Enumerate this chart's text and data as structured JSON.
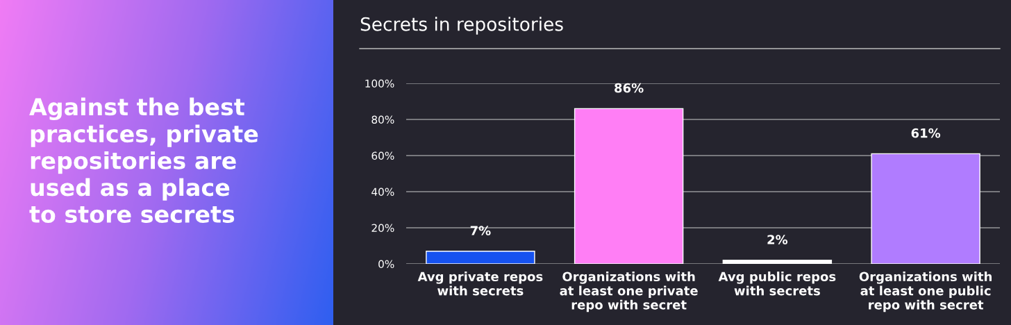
{
  "chart_data": {
    "type": "bar",
    "title": "Secrets in repositories",
    "annotations": [
      "Against the best\npractices, private\nrepositories are\nused as a place\nto store secrets"
    ],
    "categories": [
      "Avg private repos\nwith secrets",
      "Organizations with\nat least one private\nrepo with secret",
      "Avg public repos\nwith secrets",
      "Organizations with\nat least one public\nrepo with secret"
    ],
    "values": [
      7,
      86,
      2,
      61
    ],
    "colors": [
      "#1652f0",
      "#ff7ef5",
      "#ffffff",
      "#b07cff"
    ],
    "value_labels": [
      "7%",
      "86%",
      "2%",
      "61%"
    ],
    "ylim": [
      0,
      100
    ],
    "yticks": [
      {
        "value": 0,
        "label": "0%"
      },
      {
        "value": 20,
        "label": "20%"
      },
      {
        "value": 40,
        "label": "40%"
      },
      {
        "value": 60,
        "label": "60%"
      },
      {
        "value": 80,
        "label": "80%"
      },
      {
        "value": 100,
        "label": "100%"
      }
    ],
    "grid": "y"
  }
}
